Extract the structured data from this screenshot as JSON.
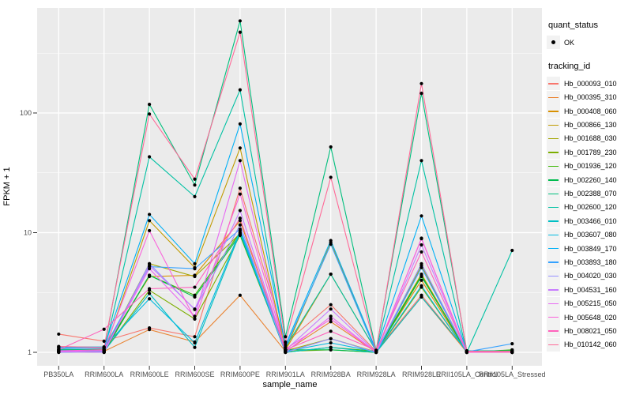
{
  "figure": {
    "background": "#FFFFFF",
    "panel_background": "#EBEBEB",
    "grid_color": "#FFFFFF",
    "tick_mark_color": "#333333",
    "tick_label_color": "#4D4D4D",
    "point_color": "#000000"
  },
  "chart_data": {
    "type": "line",
    "title": "",
    "xlabel": "sample_name",
    "ylabel": "FPKM + 1",
    "y_scale": "log10",
    "y_tick_labels": [
      "1",
      "10",
      "100"
    ],
    "y_tick_values": [
      1,
      10,
      100
    ],
    "y_minor_values": [
      3.1623,
      31.623,
      316.23
    ],
    "ylim": [
      0.95,
      700
    ],
    "grid": "on",
    "legend_position": "right",
    "x_categories": [
      "PB350LA",
      "RRIM600LA",
      "RRIM600LE",
      "RRIM600SE",
      "RRIM600PE",
      "RRIM901LA",
      "RRIM928BA",
      "RRIM928LA",
      "RRIM928LE",
      "RRII105LA_Control",
      "RRII105LA_Stressed"
    ],
    "series": [
      {
        "name": "Hb_000093_010",
        "color": "#F8766D",
        "values": [
          1.42,
          1.24,
          1.6,
          1.35,
          23.5,
          1.2,
          2.5,
          1.02,
          3.0,
          1.02,
          1.02
        ]
      },
      {
        "name": "Hb_000395_310",
        "color": "#EA8331",
        "values": [
          1.02,
          1.02,
          1.55,
          1.22,
          3.0,
          1.02,
          1.8,
          1.0,
          2.9,
          1.0,
          1.0
        ]
      },
      {
        "name": "Hb_000408_060",
        "color": "#D89000",
        "values": [
          1.05,
          1.06,
          4.3,
          4.4,
          12.6,
          1.05,
          4.5,
          1.03,
          4.0,
          1.01,
          1.03
        ]
      },
      {
        "name": "Hb_000866_130",
        "color": "#C09B00",
        "values": [
          1.01,
          1.0,
          12.6,
          5.1,
          51.0,
          1.04,
          8.3,
          1.02,
          4.5,
          1.02,
          1.0
        ]
      },
      {
        "name": "Hb_001688_030",
        "color": "#A3A500",
        "values": [
          1.03,
          1.04,
          5.5,
          4.3,
          9.8,
          1.03,
          1.3,
          1.01,
          5.3,
          1.0,
          1.02
        ]
      },
      {
        "name": "Hb_001789_230",
        "color": "#7CAE00",
        "values": [
          1.0,
          1.02,
          3.3,
          1.9,
          9.5,
          1.02,
          1.05,
          1.0,
          3.5,
          1.01,
          1.0
        ]
      },
      {
        "name": "Hb_001936_120",
        "color": "#39B600",
        "values": [
          1.02,
          1.0,
          4.4,
          3.0,
          10.0,
          1.0,
          1.1,
          1.02,
          4.4,
          1.0,
          1.05
        ]
      },
      {
        "name": "Hb_002260_140",
        "color": "#00BB4E",
        "values": [
          1.04,
          1.03,
          4.4,
          2.9,
          9.6,
          1.05,
          1.05,
          1.0,
          4.3,
          1.02,
          1.0
        ]
      },
      {
        "name": "Hb_002388_070",
        "color": "#00BF7D",
        "values": [
          1.06,
          1.05,
          118.0,
          25.0,
          588.0,
          1.35,
          52.0,
          1.04,
          146.0,
          1.03,
          1.03
        ]
      },
      {
        "name": "Hb_002600_120",
        "color": "#00C1A3",
        "values": [
          1.05,
          1.0,
          43.0,
          20.0,
          156.0,
          1.1,
          4.5,
          1.03,
          40.0,
          1.0,
          7.1
        ]
      },
      {
        "name": "Hb_003466_010",
        "color": "#00BFC4",
        "values": [
          1.0,
          1.02,
          3.1,
          1.1,
          10.0,
          1.0,
          1.1,
          1.0,
          2.9,
          1.03,
          1.0
        ]
      },
      {
        "name": "Hb_003607_080",
        "color": "#00BAE0",
        "values": [
          1.11,
          1.11,
          2.8,
          1.2,
          10.4,
          1.02,
          1.2,
          1.01,
          3.6,
          1.0,
          1.0
        ]
      },
      {
        "name": "Hb_003849_170",
        "color": "#00B0F6",
        "values": [
          1.1,
          1.1,
          14.2,
          5.5,
          81.0,
          1.15,
          8.6,
          1.04,
          13.8,
          1.02,
          1.0
        ]
      },
      {
        "name": "Hb_003893_180",
        "color": "#35A2FF",
        "values": [
          1.08,
          1.08,
          5.2,
          5.0,
          10.7,
          1.1,
          8.0,
          1.0,
          5.1,
          1.01,
          1.18
        ]
      },
      {
        "name": "Hb_004020_030",
        "color": "#9590FF",
        "values": [
          1.0,
          1.01,
          5.5,
          2.28,
          11.6,
          1.0,
          1.3,
          1.0,
          5.5,
          1.0,
          1.0
        ]
      },
      {
        "name": "Hb_004531_160",
        "color": "#C77CFF",
        "values": [
          1.01,
          1.0,
          5.3,
          2.3,
          15.3,
          1.04,
          2.3,
          1.0,
          7.9,
          1.02,
          1.0
        ]
      },
      {
        "name": "Hb_005215_050",
        "color": "#E76BF3",
        "values": [
          1.02,
          1.03,
          5.0,
          2.0,
          40.0,
          1.0,
          2.0,
          1.0,
          9.0,
          1.0,
          1.01
        ]
      },
      {
        "name": "Hb_005648_020",
        "color": "#FA62DB",
        "values": [
          1.03,
          1.05,
          10.4,
          1.9,
          21.0,
          1.06,
          1.9,
          1.0,
          8.9,
          1.0,
          1.0
        ]
      },
      {
        "name": "Hb_008021_050",
        "color": "#FF62BC",
        "values": [
          1.05,
          1.56,
          3.4,
          3.5,
          13.2,
          1.05,
          1.5,
          1.04,
          6.9,
          1.01,
          1.0
        ]
      },
      {
        "name": "Hb_010142_060",
        "color": "#FF6A98",
        "values": [
          1.12,
          1.1,
          98.0,
          28.0,
          473.0,
          1.22,
          29.0,
          1.02,
          176.0,
          1.02,
          1.02
        ]
      }
    ]
  },
  "legend": {
    "quant_status": {
      "title": "quant_status",
      "entries": [
        {
          "label": "OK",
          "marker": "point",
          "color": "#000000"
        }
      ]
    },
    "tracking_id": {
      "title": "tracking_id"
    }
  }
}
